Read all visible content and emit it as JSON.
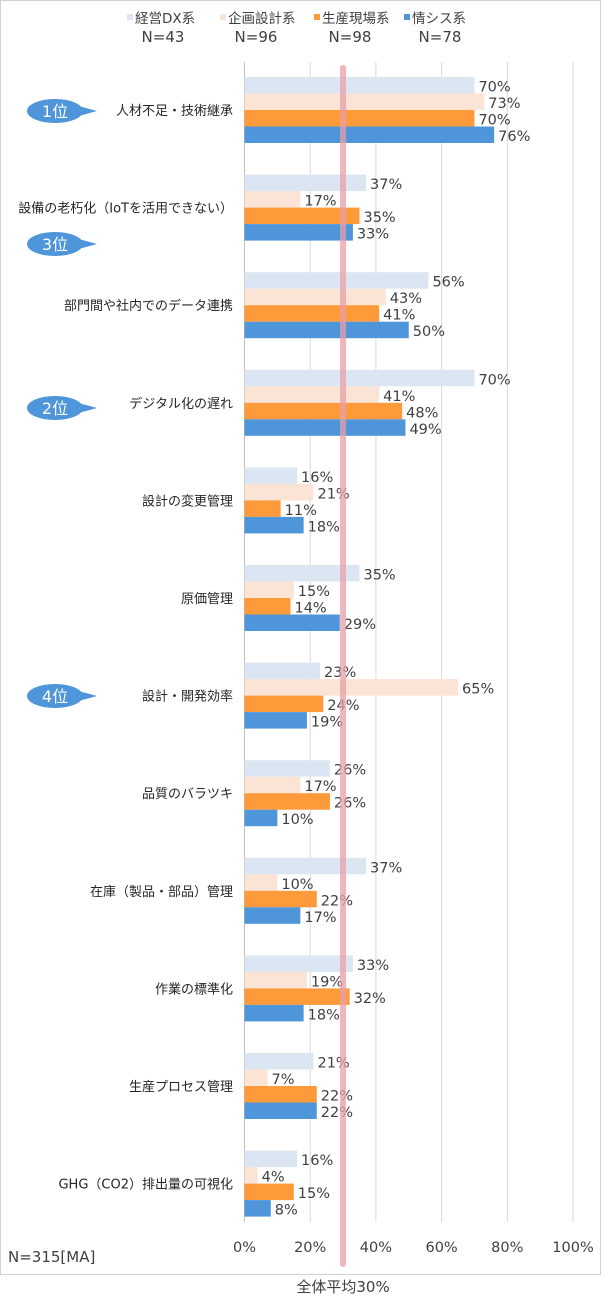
{
  "chart_data": {
    "type": "bar",
    "orientation": "horizontal",
    "categories": [
      "人材不足・技術継承",
      "設備の老朽化（IoTを活用できない）",
      "部門間や社内でのデータ連携",
      "デジタル化の遅れ",
      "設計の変更管理",
      "原価管理",
      "設計・開発効率",
      "品質のバラツキ",
      "在庫（製品・部品）管理",
      "作業の標準化",
      "生産プロセス管理",
      "GHG（CO2）排出量の可視化"
    ],
    "series": [
      {
        "name": "経営DX系",
        "n_label": "N=43",
        "color": "#dce6f2",
        "values": [
          70,
          37,
          56,
          70,
          16,
          35,
          23,
          26,
          37,
          33,
          21,
          16
        ]
      },
      {
        "name": "企画設計系",
        "n_label": "N=96",
        "color": "#fbe3d6",
        "values": [
          73,
          17,
          43,
          41,
          21,
          15,
          65,
          17,
          10,
          19,
          7,
          4
        ]
      },
      {
        "name": "生産現場系",
        "n_label": "N=98",
        "color": "#ff9a3a",
        "values": [
          70,
          35,
          41,
          48,
          11,
          14,
          24,
          26,
          22,
          32,
          22,
          15
        ]
      },
      {
        "name": "情シス系",
        "n_label": "N=78",
        "color": "#4f95d9",
        "values": [
          76,
          33,
          50,
          49,
          18,
          29,
          19,
          10,
          17,
          18,
          22,
          8
        ]
      }
    ],
    "xlim": [
      0,
      100
    ],
    "xticks": [
      "0%",
      "20%",
      "40%",
      "60%",
      "80%",
      "100%"
    ],
    "value_suffix": "%",
    "reference_line": {
      "value": 30,
      "label": "全体平均30%",
      "color": "#e8a0a8"
    },
    "rank_badges": [
      {
        "label": "1位",
        "category_index": 0
      },
      {
        "label": "3位",
        "category_index": 2
      },
      {
        "label": "2位",
        "category_index": 3
      },
      {
        "label": "4位",
        "category_index": 6
      }
    ],
    "footnote": "N=315[MA]",
    "grid": true,
    "legend_position": "top"
  }
}
